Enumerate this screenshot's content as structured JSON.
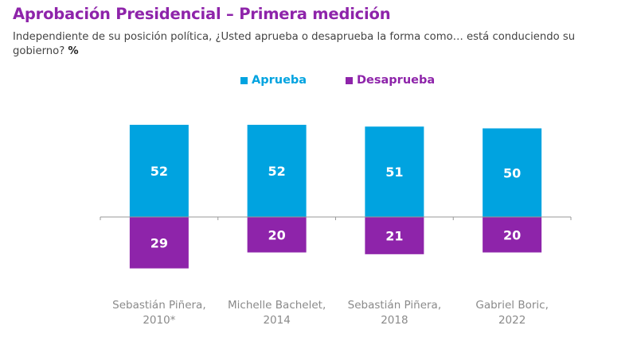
{
  "header": {
    "title": "Aprobación Presidencial – Primera medición",
    "subtitle": "Independiente de su posición política, ¿Usted aprueba o desaprueba la forma como… está conduciendo su gobierno?",
    "subtitle_unit": "%"
  },
  "colors": {
    "title": "#8e24aa",
    "aprueba": "#00a3e0",
    "desaprueba": "#8e24aa",
    "axis": "#999999",
    "category_text": "#8a8a8a"
  },
  "chart_data": {
    "type": "bar",
    "title": "Aprobación Presidencial – Primera medición",
    "subtitle": "Independiente de su posición política, ¿Usted aprueba o desaprueba la forma como… está conduciendo su gobierno? %",
    "categories": [
      [
        "Sebastián Piñera,",
        "2010*"
      ],
      [
        "Michelle Bachelet,",
        "2014"
      ],
      [
        "Sebastián Piñera,",
        "2018"
      ],
      [
        "Gabriel Boric,",
        "2022"
      ]
    ],
    "series": [
      {
        "name": "Aprueba",
        "direction": "up",
        "values": [
          52,
          52,
          51,
          50
        ]
      },
      {
        "name": "Desaprueba",
        "direction": "down",
        "values": [
          29,
          20,
          21,
          20
        ]
      }
    ],
    "legend": [
      "Aprueba",
      "Desaprueba"
    ],
    "legend_position": "top-center",
    "xlabel": "",
    "ylabel": "%",
    "ylim": [
      -30,
      55
    ],
    "grid": false,
    "data_labels": true
  }
}
